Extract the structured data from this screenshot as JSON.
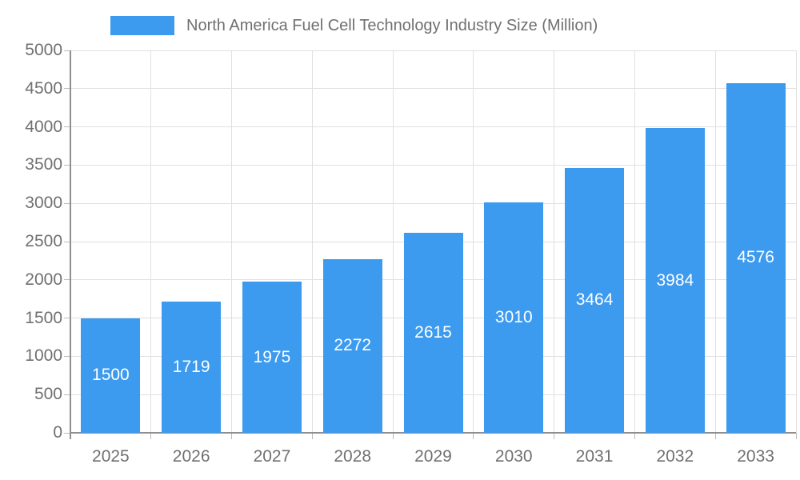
{
  "legend": {
    "label": "North America Fuel Cell Technology Industry Size (Million)"
  },
  "chart_data": {
    "type": "bar",
    "title": "North America Fuel Cell Technology Industry Size (Million)",
    "series_name": "North America Fuel Cell Technology Industry Size (Million)",
    "categories": [
      "2025",
      "2026",
      "2027",
      "2028",
      "2029",
      "2030",
      "2031",
      "2032",
      "2033"
    ],
    "values": [
      1500,
      1719,
      1975,
      2272,
      2615,
      3010,
      3464,
      3984,
      4576
    ],
    "xlabel": "",
    "ylabel": "",
    "ylim": [
      0,
      5000
    ],
    "ytick_step": 500,
    "yticks": [
      0,
      500,
      1000,
      1500,
      2000,
      2500,
      3000,
      3500,
      4000,
      4500,
      5000
    ],
    "grid": true,
    "legend_position": "top",
    "colors": {
      "bar": "#3c9aef",
      "value_label": "#ffffff",
      "axis_label": "#707070",
      "grid": "#e0e0e0",
      "axis_line": "#8f8f8f",
      "tick": "#bbbbbb",
      "background": "#ffffff"
    }
  }
}
